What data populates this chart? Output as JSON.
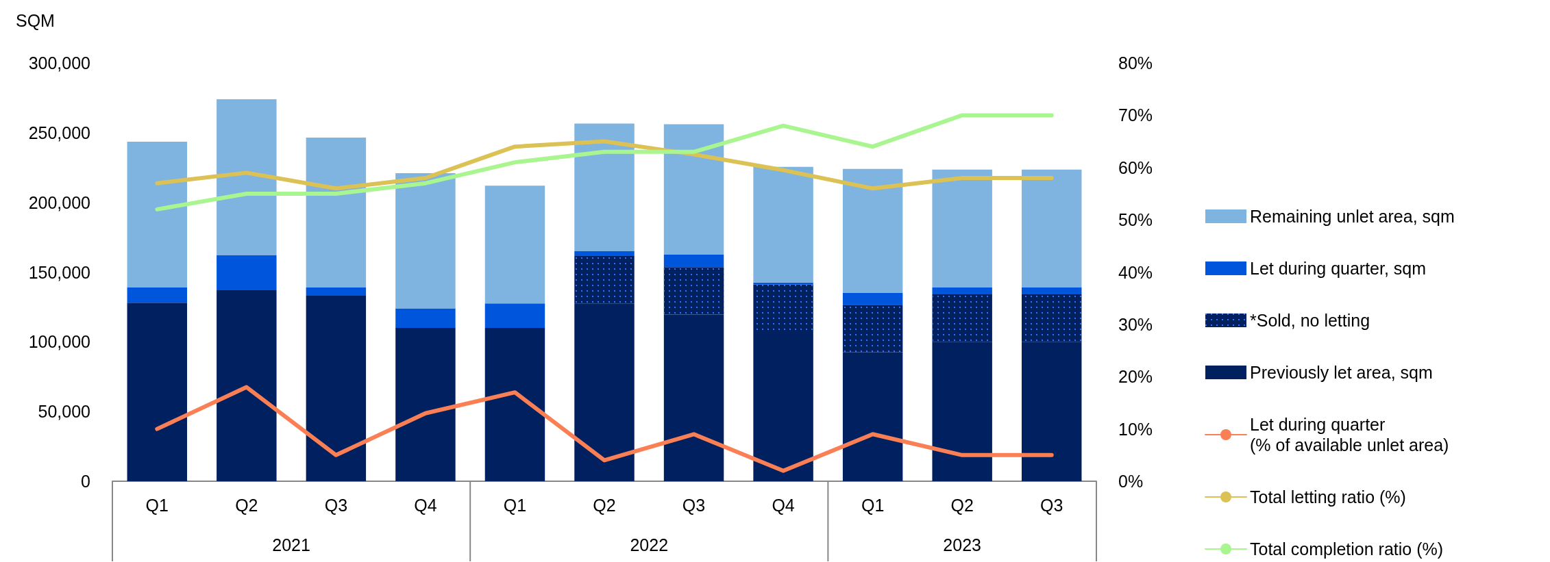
{
  "chart_data": {
    "type": "bar",
    "stacked": true,
    "ylabel": "SQM",
    "categories": [
      "Q1",
      "Q2",
      "Q3",
      "Q4",
      "Q1",
      "Q2",
      "Q3",
      "Q4",
      "Q1",
      "Q2",
      "Q3"
    ],
    "annotations": [
      "2021",
      "2022",
      "2023"
    ],
    "series": [
      {
        "name": "Previously let area, sqm",
        "color": "#002060",
        "values": [
          128000,
          137000,
          133000,
          110000,
          110000,
          127500,
          119500,
          106000,
          92500,
          100000,
          100000
        ]
      },
      {
        "name": "*Sold, no letting",
        "color": "#002060",
        "values": [
          null,
          null,
          null,
          null,
          null,
          34000,
          34000,
          35000,
          34000,
          34000,
          34000
        ]
      },
      {
        "name": "Let during quarter, sqm",
        "color": "#0055dd",
        "values": [
          11000,
          25000,
          6000,
          14000,
          17500,
          3500,
          9000,
          1500,
          8500,
          5000,
          5000
        ]
      },
      {
        "name": "Remaining unlet area, sqm",
        "color": "#7fb3e0",
        "values": [
          104500,
          112000,
          107500,
          97000,
          84500,
          91500,
          93500,
          83000,
          89000,
          84500,
          84500
        ]
      },
      {
        "name": "Let during quarter\n(% of available unlet area)",
        "type": "line",
        "axis": "y2",
        "color": "#fa7f55",
        "values": [
          10,
          18,
          5,
          13,
          17,
          4,
          9,
          2,
          9,
          5,
          5
        ]
      },
      {
        "name": "Total letting ratio (%)",
        "type": "line",
        "axis": "y2",
        "color": "#dcc155",
        "values": [
          57,
          59,
          56,
          58,
          64,
          65,
          62.5,
          59.5,
          56,
          58,
          58
        ]
      },
      {
        "name": "Total completion ratio (%)",
        "type": "line",
        "axis": "y2",
        "color": "#a9f590",
        "values": [
          52,
          55,
          55,
          57,
          61,
          63,
          63,
          68,
          64,
          70,
          70
        ]
      }
    ],
    "ylim": [
      0,
      300000
    ],
    "yticks": [
      0,
      {
        "value": 50000,
        "label": "50,000"
      },
      {
        "value": 100000,
        "label": "100,000"
      },
      {
        "value": 150000,
        "label": "150,000"
      },
      {
        "value": 200000,
        "label": "200,000"
      },
      {
        "value": 250000,
        "label": "250,000"
      },
      {
        "value": 300000,
        "label": "300,000"
      }
    ],
    "y2lim": [
      0,
      80
    ],
    "y2ticks": [
      {
        "value": 0,
        "label": "0%"
      },
      {
        "value": 10,
        "label": "10%"
      },
      {
        "value": 20,
        "label": "20%"
      },
      {
        "value": 30,
        "label": "30%"
      },
      {
        "value": 40,
        "label": "40%"
      },
      {
        "value": 50,
        "label": "50%"
      },
      {
        "value": 60,
        "label": "60%"
      },
      {
        "value": 70,
        "label": "70%"
      },
      {
        "value": 80,
        "label": "80%"
      }
    ],
    "grid": false,
    "legend": "right",
    "marker": "none"
  }
}
